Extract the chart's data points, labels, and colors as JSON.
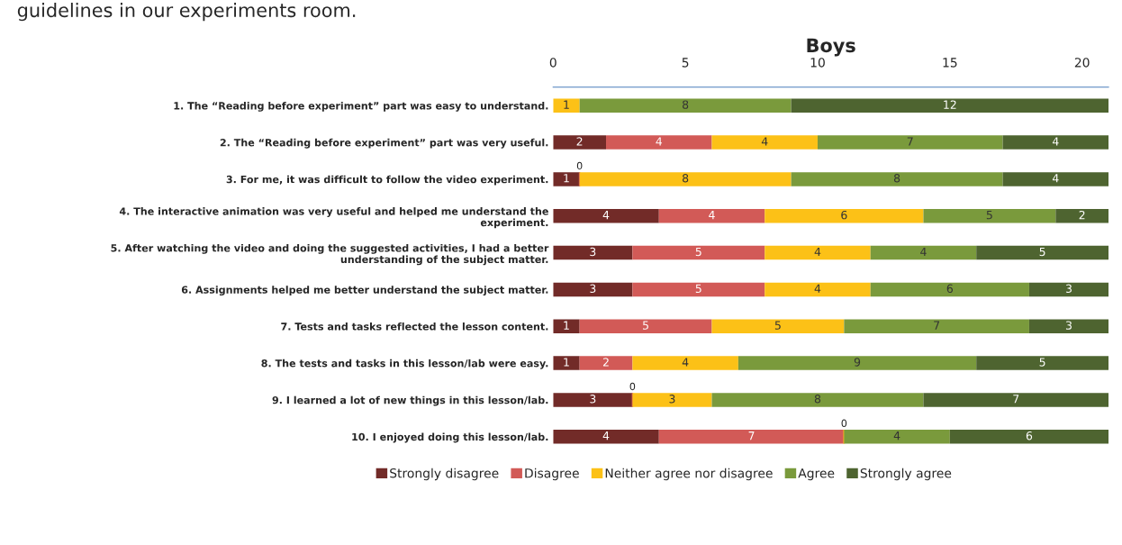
{
  "chart_data": {
    "type": "bar",
    "orientation": "horizontal",
    "stacked": true,
    "title": "Boys",
    "annotations": [
      "guidelines in our experiments room."
    ],
    "categories": [
      "1. The “Reading before experiment” part was easy to understand.",
      "2. The “Reading before experiment” part was very useful.",
      "3. For me, it was difficult to follow the video experiment.",
      "4. The interactive animation was very useful and helped me understand the experiment.",
      "5. After watching the video and doing the suggested activities, I had a better understanding of the subject matter.",
      "6. Assignments helped me better understand the subject matter.",
      "7. Tests and tasks reflected the lesson content.",
      "8. The tests and tasks in this lesson/lab were easy.",
      "9. I learned a lot of new things in this lesson/lab.",
      "10. I enjoyed doing this lesson/lab."
    ],
    "series": [
      {
        "name": "Strongly disagree",
        "color": "#722b28",
        "values": [
          0,
          2,
          1,
          4,
          3,
          3,
          1,
          1,
          3,
          4
        ],
        "value_labels": [
          null,
          "2",
          "1",
          "4",
          "3",
          "3",
          "1",
          "1",
          "3",
          "4"
        ]
      },
      {
        "name": "Disagree",
        "color": "#d25a57",
        "values": [
          0,
          4,
          0,
          4,
          5,
          5,
          5,
          2,
          0,
          7
        ],
        "value_labels": [
          null,
          "4",
          "0",
          "4",
          "5",
          "5",
          "5",
          "2",
          "0",
          "7"
        ]
      },
      {
        "name": "Neither agree nor disagree",
        "color": "#fcc117",
        "values": [
          1,
          4,
          8,
          6,
          4,
          4,
          5,
          4,
          3,
          0
        ],
        "value_labels": [
          "1",
          "4",
          "8",
          "6",
          "4",
          "4",
          "5",
          "4",
          "3",
          "0"
        ]
      },
      {
        "name": "Agree",
        "color": "#7a9a3c",
        "values": [
          8,
          7,
          8,
          5,
          4,
          6,
          7,
          9,
          8,
          4
        ],
        "value_labels": [
          "8",
          "7",
          "8",
          "5",
          "4",
          "6",
          "7",
          "9",
          "8",
          "4"
        ]
      },
      {
        "name": "Strongly agree",
        "color": "#4e6430",
        "values": [
          12,
          4,
          4,
          2,
          5,
          3,
          3,
          5,
          7,
          6
        ],
        "value_labels": [
          "12",
          "4",
          "4",
          "2",
          "5",
          "3",
          "3",
          "5",
          "7",
          "6"
        ]
      }
    ],
    "xlim": [
      0,
      21
    ],
    "xticks": [
      0,
      5,
      10,
      15,
      20
    ],
    "grid": false,
    "legend": "bottom"
  }
}
